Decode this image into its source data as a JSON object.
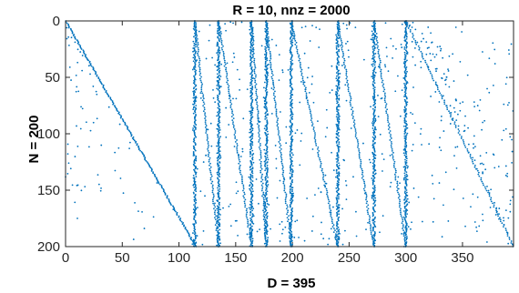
{
  "chart_data": {
    "type": "scatter",
    "title": "R = 10, nnz = 2000",
    "xlabel": "D = 395",
    "ylabel": "N = 200",
    "xlim": [
      0,
      395
    ],
    "ylim": [
      0,
      200
    ],
    "y_reversed": true,
    "grid": false,
    "legend": "none",
    "marker_color": "#0072BD",
    "x_ticks": [
      0,
      50,
      100,
      150,
      200,
      250,
      300,
      350
    ],
    "y_ticks": [
      0,
      50,
      100,
      150,
      200
    ],
    "x_tick_labels": [
      "0",
      "50",
      "100",
      "150",
      "200",
      "250",
      "300",
      "350"
    ],
    "y_tick_labels": [
      "0",
      "50",
      "100",
      "150",
      "200"
    ],
    "structure": {
      "diagonal_lines": [
        {
          "x_start": 0,
          "y_start": 0,
          "x_end": 115,
          "y_end": 200
        }
      ],
      "vertical_bands": [
        {
          "x": 114,
          "y_start": 0,
          "y_end": 200
        },
        {
          "x": 135,
          "y_start": 0,
          "y_end": 200
        },
        {
          "x": 164,
          "y_start": 0,
          "y_end": 200
        },
        {
          "x": 177,
          "y_start": 0,
          "y_end": 200
        },
        {
          "x": 199,
          "y_start": 0,
          "y_end": 200
        },
        {
          "x": 240,
          "y_start": 0,
          "y_end": 200
        },
        {
          "x": 272,
          "y_start": 0,
          "y_end": 200
        },
        {
          "x": 300,
          "y_start": 0,
          "y_end": 200
        }
      ],
      "band_diagonals": [
        {
          "x_start": 114,
          "y_start": 0,
          "x_end": 135,
          "y_end": 200
        },
        {
          "x_start": 135,
          "y_start": 0,
          "x_end": 164,
          "y_end": 200
        },
        {
          "x_start": 164,
          "y_start": 0,
          "x_end": 177,
          "y_end": 200
        },
        {
          "x_start": 177,
          "y_start": 0,
          "x_end": 199,
          "y_end": 200
        },
        {
          "x_start": 199,
          "y_start": 0,
          "x_end": 240,
          "y_end": 200
        },
        {
          "x_start": 240,
          "y_start": 0,
          "x_end": 272,
          "y_end": 200
        },
        {
          "x_start": 272,
          "y_start": 0,
          "x_end": 300,
          "y_end": 200
        },
        {
          "x_start": 300,
          "y_start": 0,
          "x_end": 395,
          "y_end": 200
        }
      ],
      "random_fill_regions": [
        {
          "x_range": [
            0,
            115
          ],
          "y_range": [
            0,
            200
          ]
        },
        {
          "x_range": [
            300,
            395
          ],
          "y_range": [
            0,
            200
          ]
        }
      ]
    }
  }
}
